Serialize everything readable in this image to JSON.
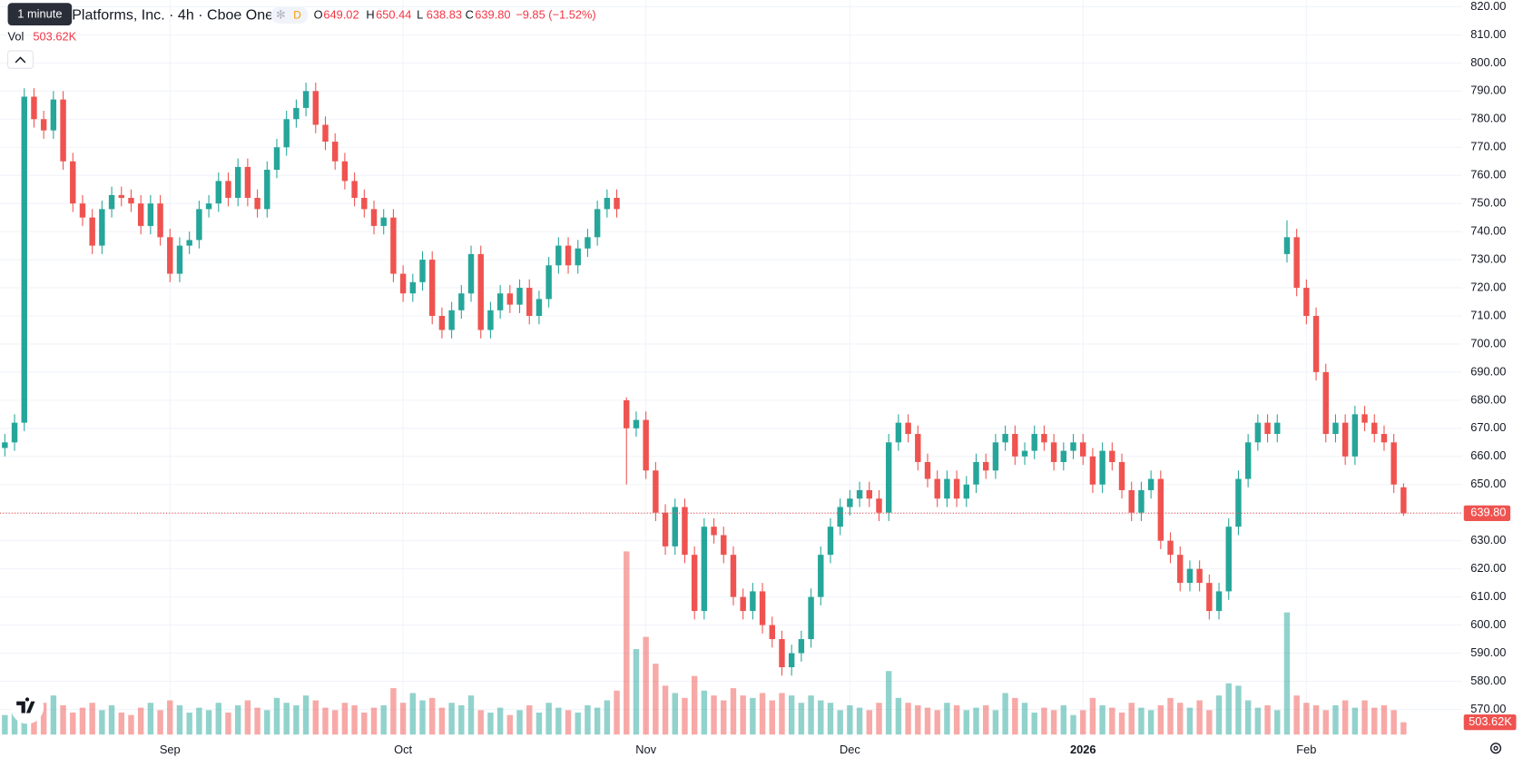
{
  "header": {
    "tooltip": "1 minute",
    "symbol": "Platforms, Inc. · 4h · Cboe One",
    "badge": "D",
    "legend": [
      {
        "key": "O",
        "text": "649.02"
      },
      {
        "key": "H",
        "text": "650.44"
      },
      {
        "key": "L",
        "text": "638.83"
      },
      {
        "key": "C",
        "text": "639.80"
      }
    ],
    "change": "−9.85 (−1.52%)",
    "volume_key": "Vol"
  },
  "chart_data": {
    "type": "candlestick",
    "up_color": "#26a69a",
    "down_color": "#ef5350",
    "grid": true,
    "xlim": [
      -0.5,
      150
    ],
    "ylim": [
      560,
      822.4
    ],
    "volume_ylim": [
      0,
      8000000
    ],
    "yticks": [
      {
        "value": 570,
        "label": "570.00"
      },
      {
        "value": 580,
        "label": "580.00"
      },
      {
        "value": 590,
        "label": "590.00"
      },
      {
        "value": 600,
        "label": "600.00"
      },
      {
        "value": 610,
        "label": "610.00"
      },
      {
        "value": 620,
        "label": "620.00"
      },
      {
        "value": 630,
        "label": "630.00"
      },
      {
        "value": 640,
        "label": "640.00"
      },
      {
        "value": 650,
        "label": "650.00"
      },
      {
        "value": 660,
        "label": "660.00"
      },
      {
        "value": 670,
        "label": "670.00"
      },
      {
        "value": 680,
        "label": "680.00"
      },
      {
        "value": 690,
        "label": "690.00"
      },
      {
        "value": 700,
        "label": "700.00"
      },
      {
        "value": 710,
        "label": "710.00"
      },
      {
        "value": 720,
        "label": "720.00"
      },
      {
        "value": 730,
        "label": "730.00"
      },
      {
        "value": 740,
        "label": "740.00"
      },
      {
        "value": 750,
        "label": "750.00"
      },
      {
        "value": 760,
        "label": "760.00"
      },
      {
        "value": 770,
        "label": "770.00"
      },
      {
        "value": 780,
        "label": "780.00"
      },
      {
        "value": 790,
        "label": "790.00"
      },
      {
        "value": 800,
        "label": "800.00"
      },
      {
        "value": 810,
        "label": "810.00"
      },
      {
        "value": 820,
        "label": "820.00"
      }
    ],
    "xticks": [
      {
        "value": 17,
        "label": "Sep"
      },
      {
        "value": 41,
        "label": "Oct"
      },
      {
        "value": 66,
        "label": "Nov"
      },
      {
        "value": 87,
        "label": "Dec"
      },
      {
        "value": 111,
        "label": "2026"
      },
      {
        "value": 134,
        "label": "Feb"
      }
    ],
    "open": [
      663,
      665,
      672,
      788,
      780,
      776,
      787,
      765,
      750,
      745,
      735,
      748,
      753,
      752,
      750,
      742,
      750,
      738,
      725,
      735,
      737,
      748,
      750,
      758,
      752,
      763,
      752,
      748,
      762,
      770,
      780,
      784,
      790,
      778,
      772,
      765,
      758,
      752,
      748,
      742,
      745,
      725,
      718,
      722,
      730,
      710,
      705,
      712,
      718,
      732,
      705,
      712,
      718,
      714,
      720,
      710,
      716,
      728,
      735,
      728,
      734,
      738,
      748,
      752,
      680,
      670,
      673,
      655,
      640,
      628,
      642,
      625,
      605,
      635,
      632,
      625,
      610,
      605,
      612,
      600,
      595,
      585,
      590,
      595,
      610,
      625,
      635,
      642,
      645,
      648,
      645,
      640,
      665,
      672,
      668,
      658,
      652,
      645,
      652,
      645,
      650,
      658,
      655,
      665,
      668,
      660,
      662,
      668,
      665,
      658,
      662,
      665,
      660,
      650,
      662,
      658,
      648,
      640,
      648,
      652,
      630,
      625,
      615,
      620,
      615,
      605,
      612,
      635,
      652,
      665,
      672,
      668,
      732,
      738,
      720,
      710,
      690,
      668,
      672,
      660,
      675,
      672,
      668,
      665,
      649.02
    ],
    "high": [
      668,
      675,
      791,
      791,
      783,
      790,
      790,
      768,
      753,
      748,
      751,
      756,
      756,
      755,
      753,
      753,
      753,
      741,
      738,
      740,
      751,
      753,
      761,
      761,
      766,
      766,
      755,
      765,
      773,
      783,
      787,
      793,
      793,
      781,
      775,
      768,
      761,
      755,
      751,
      748,
      748,
      728,
      725,
      733,
      733,
      713,
      715,
      721,
      735,
      735,
      715,
      721,
      721,
      723,
      723,
      719,
      731,
      738,
      738,
      737,
      741,
      751,
      755,
      755,
      681,
      676,
      676,
      658,
      643,
      645,
      645,
      628,
      638,
      638,
      635,
      628,
      613,
      615,
      615,
      603,
      598,
      593,
      598,
      613,
      628,
      638,
      645,
      648,
      651,
      651,
      648,
      668,
      675,
      675,
      671,
      661,
      655,
      655,
      655,
      653,
      661,
      661,
      668,
      671,
      671,
      665,
      671,
      671,
      668,
      665,
      668,
      668,
      663,
      665,
      665,
      661,
      651,
      651,
      655,
      655,
      633,
      628,
      623,
      623,
      618,
      615,
      638,
      655,
      668,
      675,
      675,
      675,
      744,
      741,
      723,
      713,
      693,
      675,
      675,
      678,
      678,
      675,
      671,
      668,
      650.44
    ],
    "low": [
      660,
      662,
      669,
      777,
      773,
      773,
      762,
      747,
      742,
      732,
      732,
      745,
      749,
      747,
      739,
      739,
      735,
      722,
      722,
      732,
      734,
      745,
      747,
      749,
      749,
      749,
      745,
      745,
      759,
      767,
      777,
      781,
      775,
      769,
      762,
      755,
      749,
      745,
      739,
      739,
      722,
      715,
      715,
      719,
      707,
      702,
      702,
      709,
      715,
      702,
      702,
      709,
      711,
      711,
      707,
      707,
      713,
      725,
      725,
      725,
      731,
      735,
      745,
      745,
      650,
      667,
      652,
      637,
      625,
      625,
      622,
      602,
      602,
      629,
      622,
      607,
      602,
      602,
      597,
      592,
      582,
      582,
      587,
      592,
      607,
      622,
      632,
      639,
      642,
      642,
      637,
      637,
      662,
      665,
      655,
      649,
      642,
      642,
      642,
      642,
      647,
      652,
      652,
      662,
      657,
      657,
      659,
      662,
      655,
      655,
      659,
      657,
      647,
      647,
      655,
      645,
      637,
      637,
      645,
      627,
      622,
      612,
      612,
      612,
      602,
      602,
      609,
      632,
      649,
      662,
      665,
      665,
      729,
      717,
      707,
      687,
      665,
      665,
      657,
      657,
      669,
      665,
      662,
      647,
      638.83
    ],
    "close": [
      665,
      672,
      788,
      780,
      776,
      787,
      765,
      750,
      745,
      735,
      748,
      753,
      752,
      750,
      742,
      750,
      738,
      725,
      735,
      737,
      748,
      750,
      758,
      752,
      763,
      752,
      748,
      762,
      770,
      780,
      784,
      790,
      778,
      772,
      765,
      758,
      752,
      748,
      742,
      745,
      725,
      718,
      722,
      730,
      710,
      705,
      712,
      718,
      732,
      705,
      712,
      718,
      714,
      720,
      710,
      716,
      728,
      735,
      728,
      734,
      738,
      748,
      752,
      748,
      670,
      673,
      655,
      640,
      628,
      642,
      625,
      605,
      635,
      632,
      625,
      610,
      605,
      612,
      600,
      595,
      585,
      590,
      595,
      610,
      625,
      635,
      642,
      645,
      648,
      645,
      640,
      665,
      672,
      668,
      658,
      652,
      645,
      652,
      645,
      650,
      658,
      655,
      665,
      668,
      660,
      662,
      668,
      665,
      658,
      662,
      665,
      660,
      650,
      662,
      658,
      648,
      640,
      648,
      652,
      630,
      625,
      615,
      620,
      615,
      605,
      612,
      635,
      652,
      665,
      672,
      668,
      672,
      738,
      720,
      710,
      690,
      668,
      672,
      660,
      675,
      672,
      668,
      665,
      650,
      639.8
    ],
    "volume": [
      800000,
      1100000,
      1400000,
      1000000,
      1300000,
      1600000,
      1200000,
      900000,
      1100000,
      1300000,
      1000000,
      1200000,
      900000,
      800000,
      1100000,
      1300000,
      1000000,
      1400000,
      1200000,
      900000,
      1100000,
      1000000,
      1300000,
      900000,
      1200000,
      1400000,
      1100000,
      1000000,
      1500000,
      1300000,
      1200000,
      1600000,
      1400000,
      1100000,
      1000000,
      1300000,
      1200000,
      900000,
      1100000,
      1200000,
      1900000,
      1300000,
      1700000,
      1400000,
      1500000,
      1100000,
      1300000,
      1200000,
      1600000,
      1000000,
      900000,
      1100000,
      800000,
      1000000,
      1200000,
      900000,
      1300000,
      1100000,
      1000000,
      900000,
      1200000,
      1100000,
      1400000,
      1800000,
      7500000,
      3500000,
      4000000,
      2900000,
      2000000,
      1700000,
      1500000,
      2400000,
      1800000,
      1600000,
      1400000,
      1900000,
      1600000,
      1500000,
      1700000,
      1400000,
      1700000,
      1600000,
      1300000,
      1600000,
      1400000,
      1300000,
      1000000,
      1200000,
      1100000,
      1000000,
      1300000,
      2600000,
      1500000,
      1300000,
      1200000,
      1100000,
      1000000,
      1300000,
      1200000,
      1000000,
      1100000,
      1200000,
      1000000,
      1700000,
      1500000,
      1300000,
      900000,
      1100000,
      1000000,
      1200000,
      800000,
      1000000,
      1500000,
      1200000,
      1100000,
      900000,
      1300000,
      1100000,
      1000000,
      1200000,
      1500000,
      1300000,
      1100000,
      1400000,
      1000000,
      1600000,
      2100000,
      2000000,
      1400000,
      1100000,
      1200000,
      1000000,
      5000000,
      1600000,
      1300000,
      1200000,
      1000000,
      1200000,
      1400000,
      1100000,
      1400000,
      1100000,
      1200000,
      1000000,
      503620
    ],
    "last_price": {
      "value": 639.8,
      "label": "639.80"
    },
    "last_volume": {
      "value": 503620,
      "label": "503.62K"
    }
  }
}
